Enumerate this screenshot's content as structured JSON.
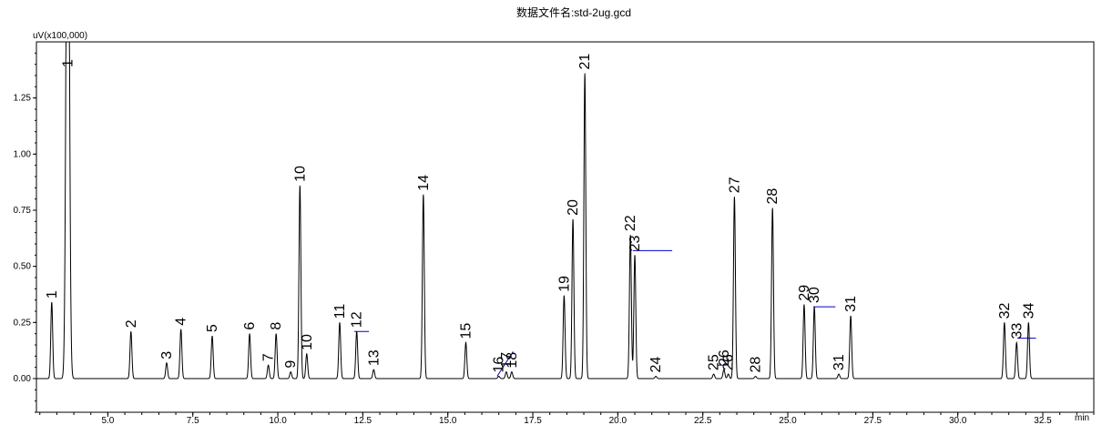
{
  "chart_data": {
    "type": "line",
    "title": "数据文件名:std-2ug.gcd",
    "ylabel": "uV(x100,000)",
    "xlabel": "min",
    "xlim": [
      2.9,
      34.0
    ],
    "ylim": [
      -0.15,
      1.5
    ],
    "x_ticks": [
      5.0,
      7.5,
      10.0,
      12.5,
      15.0,
      17.5,
      20.0,
      22.5,
      25.0,
      27.5,
      30.0,
      32.5
    ],
    "x_tick_labels": [
      "5.0",
      "7.5",
      "10.0",
      "12.5",
      "15.0",
      "17.5",
      "20.0",
      "22.5",
      "25.0",
      "27.5",
      "30.0",
      "32.5"
    ],
    "y_ticks": [
      0.0,
      0.25,
      0.5,
      0.75,
      1.0,
      1.25
    ],
    "y_tick_labels": [
      "0.00",
      "0.25",
      "0.50",
      "0.75",
      "1.00",
      "1.25"
    ],
    "grid": false,
    "line_color": "#000000",
    "baseline_color": "#0000cc",
    "peaks": [
      {
        "label": "1",
        "x": 3.35,
        "h": 0.34
      },
      {
        "label": "1",
        "x": 3.82,
        "h": 3.0
      },
      {
        "label": "2",
        "x": 5.68,
        "h": 0.21
      },
      {
        "label": "3",
        "x": 6.73,
        "h": 0.07
      },
      {
        "label": "4",
        "x": 7.15,
        "h": 0.22
      },
      {
        "label": "5",
        "x": 8.07,
        "h": 0.19
      },
      {
        "label": "6",
        "x": 9.17,
        "h": 0.2
      },
      {
        "label": "7",
        "x": 9.72,
        "h": 0.06
      },
      {
        "label": "8",
        "x": 9.95,
        "h": 0.2
      },
      {
        "label": "9",
        "x": 10.38,
        "h": 0.03
      },
      {
        "label": "10",
        "x": 10.65,
        "h": 0.86
      },
      {
        "label": "10",
        "x": 10.85,
        "h": 0.11
      },
      {
        "label": "11",
        "x": 11.82,
        "h": 0.25
      },
      {
        "label": "12",
        "x": 12.32,
        "h": 0.21
      },
      {
        "label": "13",
        "x": 12.82,
        "h": 0.04
      },
      {
        "label": "14",
        "x": 14.28,
        "h": 0.82
      },
      {
        "label": "15",
        "x": 15.53,
        "h": 0.16
      },
      {
        "label": "16",
        "x": 16.5,
        "h": 0.01
      },
      {
        "label": "17",
        "x": 16.72,
        "h": 0.03
      },
      {
        "label": "18",
        "x": 16.88,
        "h": 0.03
      },
      {
        "label": "19",
        "x": 18.42,
        "h": 0.37
      },
      {
        "label": "20",
        "x": 18.68,
        "h": 0.71
      },
      {
        "label": "21",
        "x": 19.03,
        "h": 1.36
      },
      {
        "label": "22",
        "x": 20.37,
        "h": 0.64
      },
      {
        "label": "23",
        "x": 20.5,
        "h": 0.55
      },
      {
        "label": "24",
        "x": 21.12,
        "h": 0.01
      },
      {
        "label": "25",
        "x": 22.82,
        "h": 0.02
      },
      {
        "label": "26",
        "x": 23.12,
        "h": 0.04
      },
      {
        "label": "26",
        "x": 23.25,
        "h": 0.02
      },
      {
        "label": "27",
        "x": 23.43,
        "h": 0.81
      },
      {
        "label": "28",
        "x": 24.05,
        "h": 0.01
      },
      {
        "label": "28",
        "x": 24.55,
        "h": 0.76
      },
      {
        "label": "29",
        "x": 25.48,
        "h": 0.33
      },
      {
        "label": "30",
        "x": 25.78,
        "h": 0.32
      },
      {
        "label": "31",
        "x": 26.5,
        "h": 0.02
      },
      {
        "label": "31",
        "x": 26.85,
        "h": 0.28
      },
      {
        "label": "32",
        "x": 31.37,
        "h": 0.25
      },
      {
        "label": "33",
        "x": 31.73,
        "h": 0.16
      },
      {
        "label": "34",
        "x": 32.08,
        "h": 0.25
      }
    ],
    "integration_baselines": [
      {
        "x1": 12.25,
        "y1": 0.21,
        "x2": 12.68,
        "y2": 0.21
      },
      {
        "x1": 16.45,
        "y1": 0.01,
        "x2": 16.92,
        "y2": 0.12
      },
      {
        "x1": 20.44,
        "y1": 0.57,
        "x2": 21.6,
        "y2": 0.57
      },
      {
        "x1": 22.95,
        "y1": 0.06,
        "x2": 23.2,
        "y2": 0.06
      },
      {
        "x1": 25.75,
        "y1": 0.32,
        "x2": 26.4,
        "y2": 0.32
      },
      {
        "x1": 31.75,
        "y1": 0.18,
        "x2": 32.3,
        "y2": 0.18
      }
    ]
  }
}
